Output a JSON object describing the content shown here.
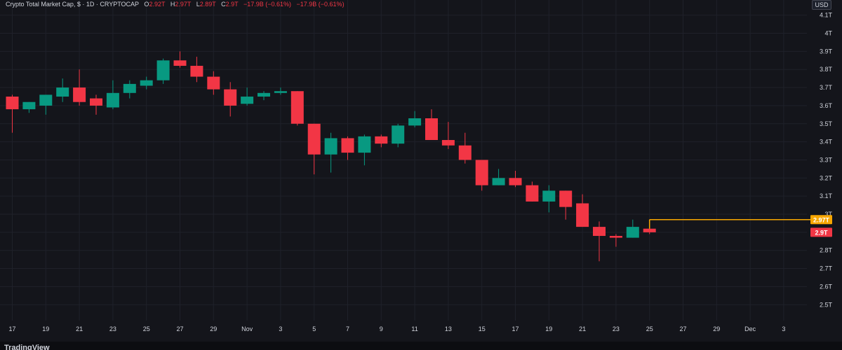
{
  "legend": {
    "title": "Crypto Total Market Cap, $ · 1D · CRYPTOCAP",
    "o_label": "O",
    "o_val": "2.92T",
    "h_label": "H",
    "h_val": "2.97T",
    "l_label": "L",
    "l_val": "2.89T",
    "c_label": "C",
    "c_val": "2.9T",
    "change": "−17.9B (−0.61%)",
    "change2": "−17.9B (−0.61%)"
  },
  "currency": "USD",
  "footer": {
    "brand": "TradingView"
  },
  "price_badges": {
    "high_line": "2.97T",
    "last": "2.9T"
  },
  "colors": {
    "bg": "#14151b",
    "up": "#089981",
    "down": "#f23645",
    "high_line": "#f7a600",
    "grid": "#1f212a"
  },
  "chart_data": {
    "type": "candlestick",
    "title": "Crypto Total Market Cap, $ · 1D · CRYPTOCAP",
    "y_unit": "T",
    "ylim": [
      2.45,
      4.15
    ],
    "y_ticks": [
      "2.5T",
      "2.6T",
      "2.7T",
      "2.8T",
      "2.9T",
      "3T",
      "3.1T",
      "3.2T",
      "3.3T",
      "3.4T",
      "3.5T",
      "3.6T",
      "3.7T",
      "3.8T",
      "3.9T",
      "4T",
      "4.1T"
    ],
    "x_ticks": [
      "17",
      "19",
      "21",
      "23",
      "25",
      "27",
      "29",
      "Nov",
      "3",
      "5",
      "7",
      "9",
      "11",
      "13",
      "15",
      "17",
      "19",
      "21",
      "23",
      "25",
      "27",
      "29",
      "Dec",
      "3"
    ],
    "candles": [
      {
        "date": "Oct 17",
        "o": 3.65,
        "h": 3.66,
        "l": 3.45,
        "c": 3.58
      },
      {
        "date": "Oct 18",
        "o": 3.58,
        "h": 3.62,
        "l": 3.56,
        "c": 3.62
      },
      {
        "date": "Oct 19",
        "o": 3.6,
        "h": 3.66,
        "l": 3.55,
        "c": 3.66
      },
      {
        "date": "Oct 20",
        "o": 3.65,
        "h": 3.75,
        "l": 3.62,
        "c": 3.7
      },
      {
        "date": "Oct 21",
        "o": 3.7,
        "h": 3.8,
        "l": 3.6,
        "c": 3.62
      },
      {
        "date": "Oct 22",
        "o": 3.64,
        "h": 3.66,
        "l": 3.55,
        "c": 3.6
      },
      {
        "date": "Oct 23",
        "o": 3.59,
        "h": 3.74,
        "l": 3.58,
        "c": 3.67
      },
      {
        "date": "Oct 24",
        "o": 3.67,
        "h": 3.74,
        "l": 3.64,
        "c": 3.72
      },
      {
        "date": "Oct 25",
        "o": 3.71,
        "h": 3.76,
        "l": 3.69,
        "c": 3.74
      },
      {
        "date": "Oct 26",
        "o": 3.74,
        "h": 3.86,
        "l": 3.72,
        "c": 3.85
      },
      {
        "date": "Oct 27",
        "o": 3.85,
        "h": 3.9,
        "l": 3.81,
        "c": 3.82
      },
      {
        "date": "Oct 28",
        "o": 3.82,
        "h": 3.87,
        "l": 3.73,
        "c": 3.76
      },
      {
        "date": "Oct 29",
        "o": 3.76,
        "h": 3.79,
        "l": 3.66,
        "c": 3.69
      },
      {
        "date": "Oct 30",
        "o": 3.69,
        "h": 3.73,
        "l": 3.54,
        "c": 3.6
      },
      {
        "date": "Oct 31",
        "o": 3.61,
        "h": 3.7,
        "l": 3.6,
        "c": 3.65
      },
      {
        "date": "Nov 1",
        "o": 3.65,
        "h": 3.68,
        "l": 3.63,
        "c": 3.67
      },
      {
        "date": "Nov 2",
        "o": 3.67,
        "h": 3.7,
        "l": 3.66,
        "c": 3.68
      },
      {
        "date": "Nov 3",
        "o": 3.68,
        "h": 3.68,
        "l": 3.49,
        "c": 3.5
      },
      {
        "date": "Nov 4",
        "o": 3.5,
        "h": 3.5,
        "l": 3.22,
        "c": 3.33
      },
      {
        "date": "Nov 5",
        "o": 3.33,
        "h": 3.45,
        "l": 3.23,
        "c": 3.42
      },
      {
        "date": "Nov 6",
        "o": 3.42,
        "h": 3.43,
        "l": 3.3,
        "c": 3.34
      },
      {
        "date": "Nov 7",
        "o": 3.34,
        "h": 3.44,
        "l": 3.27,
        "c": 3.43
      },
      {
        "date": "Nov 8",
        "o": 3.43,
        "h": 3.44,
        "l": 3.37,
        "c": 3.39
      },
      {
        "date": "Nov 9",
        "o": 3.39,
        "h": 3.5,
        "l": 3.37,
        "c": 3.49
      },
      {
        "date": "Nov 10",
        "o": 3.49,
        "h": 3.57,
        "l": 3.48,
        "c": 3.53
      },
      {
        "date": "Nov 11",
        "o": 3.53,
        "h": 3.58,
        "l": 3.41,
        "c": 3.41
      },
      {
        "date": "Nov 12",
        "o": 3.41,
        "h": 3.51,
        "l": 3.36,
        "c": 3.38
      },
      {
        "date": "Nov 13",
        "o": 3.38,
        "h": 3.45,
        "l": 3.28,
        "c": 3.3
      },
      {
        "date": "Nov 14",
        "o": 3.3,
        "h": 3.3,
        "l": 3.13,
        "c": 3.16
      },
      {
        "date": "Nov 15",
        "o": 3.16,
        "h": 3.25,
        "l": 3.16,
        "c": 3.2
      },
      {
        "date": "Nov 16",
        "o": 3.2,
        "h": 3.24,
        "l": 3.15,
        "c": 3.16
      },
      {
        "date": "Nov 17",
        "o": 3.16,
        "h": 3.18,
        "l": 3.07,
        "c": 3.07
      },
      {
        "date": "Nov 18",
        "o": 3.07,
        "h": 3.16,
        "l": 3.01,
        "c": 3.13
      },
      {
        "date": "Nov 19",
        "o": 3.13,
        "h": 3.13,
        "l": 2.97,
        "c": 3.04
      },
      {
        "date": "Nov 20",
        "o": 3.06,
        "h": 3.11,
        "l": 2.93,
        "c": 2.93
      },
      {
        "date": "Nov 21",
        "o": 2.93,
        "h": 2.96,
        "l": 2.74,
        "c": 2.88
      },
      {
        "date": "Nov 22",
        "o": 2.88,
        "h": 2.89,
        "l": 2.82,
        "c": 2.87
      },
      {
        "date": "Nov 23",
        "o": 2.87,
        "h": 2.97,
        "l": 2.87,
        "c": 2.93
      },
      {
        "date": "Nov 24",
        "o": 2.92,
        "h": 2.97,
        "l": 2.89,
        "c": 2.9
      }
    ],
    "high_line": {
      "value": 2.97,
      "label": "2.97T",
      "from": "Nov 24"
    },
    "last_price": {
      "value": 2.9,
      "label": "2.9T"
    }
  }
}
